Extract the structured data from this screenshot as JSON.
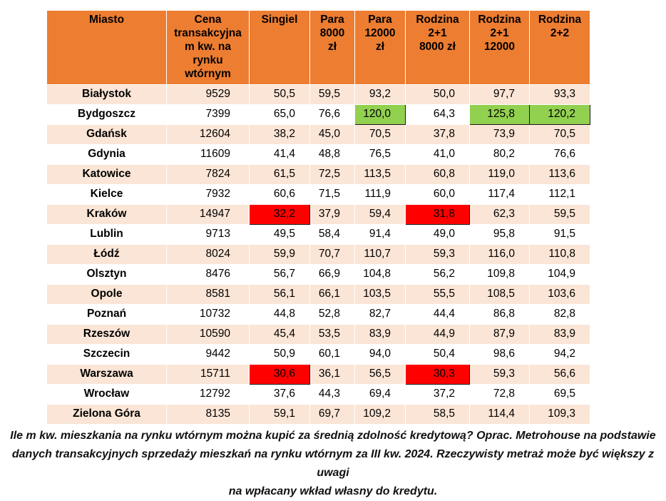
{
  "chart_data": {
    "type": "table",
    "title": "",
    "columns": [
      "Miasto",
      "Cena transakcyjna m kw. na rynku wtórnym",
      "Singiel",
      "Para 8000 zł",
      "Para 12000 zł",
      "Rodzina 2+1 8000 zł",
      "Rodzina 2+1 12000",
      "Rodzina 2+2"
    ],
    "column_display": [
      "Miasto",
      "Cena\ntransakcyjna\nm kw. na\nrynku\nwtórnym",
      "Singiel",
      "Para\n8000\nzł",
      "Para\n12000\nzł",
      "Rodzina\n2+1\n8000 zł",
      "Rodzina\n2+1\n12000",
      "Rodzina\n2+2"
    ],
    "rows": [
      {
        "cells": [
          "Białystok",
          "9529",
          "50,5",
          "59,5",
          "93,2",
          "50,0",
          "97,7",
          "93,3"
        ],
        "highlights": {}
      },
      {
        "cells": [
          "Bydgoszcz",
          "7399",
          "65,0",
          "76,6",
          "120,0",
          "64,3",
          "125,8",
          "120,2"
        ],
        "highlights": {
          "4": "green",
          "6": "green",
          "7": "green"
        }
      },
      {
        "cells": [
          "Gdańsk",
          "12604",
          "38,2",
          "45,0",
          "70,5",
          "37,8",
          "73,9",
          "70,5"
        ],
        "highlights": {}
      },
      {
        "cells": [
          "Gdynia",
          "11609",
          "41,4",
          "48,8",
          "76,5",
          "41,0",
          "80,2",
          "76,6"
        ],
        "highlights": {}
      },
      {
        "cells": [
          "Katowice",
          "7824",
          "61,5",
          "72,5",
          "113,5",
          "60,8",
          "119,0",
          "113,6"
        ],
        "highlights": {}
      },
      {
        "cells": [
          "Kielce",
          "7932",
          "60,6",
          "71,5",
          "111,9",
          "60,0",
          "117,4",
          "112,1"
        ],
        "highlights": {}
      },
      {
        "cells": [
          "Kraków",
          "14947",
          "32,2",
          "37,9",
          "59,4",
          "31,8",
          "62,3",
          "59,5"
        ],
        "highlights": {
          "2": "red",
          "5": "red"
        }
      },
      {
        "cells": [
          "Lublin",
          "9713",
          "49,5",
          "58,4",
          "91,4",
          "49,0",
          "95,8",
          "91,5"
        ],
        "highlights": {}
      },
      {
        "cells": [
          "Łódź",
          "8024",
          "59,9",
          "70,7",
          "110,7",
          "59,3",
          "116,0",
          "110,8"
        ],
        "highlights": {}
      },
      {
        "cells": [
          "Olsztyn",
          "8476",
          "56,7",
          "66,9",
          "104,8",
          "56,2",
          "109,8",
          "104,9"
        ],
        "highlights": {}
      },
      {
        "cells": [
          "Opole",
          "8581",
          "56,1",
          "66,1",
          "103,5",
          "55,5",
          "108,5",
          "103,6"
        ],
        "highlights": {}
      },
      {
        "cells": [
          "Poznań",
          "10732",
          "44,8",
          "52,8",
          "82,7",
          "44,4",
          "86,8",
          "82,8"
        ],
        "highlights": {}
      },
      {
        "cells": [
          "Rzeszów",
          "10590",
          "45,4",
          "53,5",
          "83,9",
          "44,9",
          "87,9",
          "83,9"
        ],
        "highlights": {}
      },
      {
        "cells": [
          "Szczecin",
          "9442",
          "50,9",
          "60,1",
          "94,0",
          "50,4",
          "98,6",
          "94,2"
        ],
        "highlights": {}
      },
      {
        "cells": [
          "Warszawa",
          "15711",
          "30,6",
          "36,1",
          "56,5",
          "30,3",
          "59,3",
          "56,6"
        ],
        "highlights": {
          "2": "red",
          "5": "red"
        }
      },
      {
        "cells": [
          "Wrocław",
          "12792",
          "37,6",
          "44,3",
          "69,4",
          "37,2",
          "72,8",
          "69,5"
        ],
        "highlights": {}
      },
      {
        "cells": [
          "Zielona Góra",
          "8135",
          "59,1",
          "69,7",
          "109,2",
          "58,5",
          "114,4",
          "109,3"
        ],
        "highlights": {}
      }
    ],
    "caption": "Ile m kw. mieszkania na rynku wtórnym można kupić za średnią zdolność kredytową? Oprac. Metrohouse na podstawie\ndanych transakcyjnych sprzedaży mieszkań na rynku wtórnym za III kw. 2024. Rzeczywisty metraż może być większy z uwagi\nna wpłacany wkład własny do kredytu.",
    "colors": {
      "header_bg": "#ED7D31",
      "row_alt_bg": "#FBE5D6",
      "highlight_green": "#92D050",
      "highlight_red": "#FF0000"
    },
    "layout": {
      "legend": "none",
      "grid": "white-cell-borders"
    }
  }
}
